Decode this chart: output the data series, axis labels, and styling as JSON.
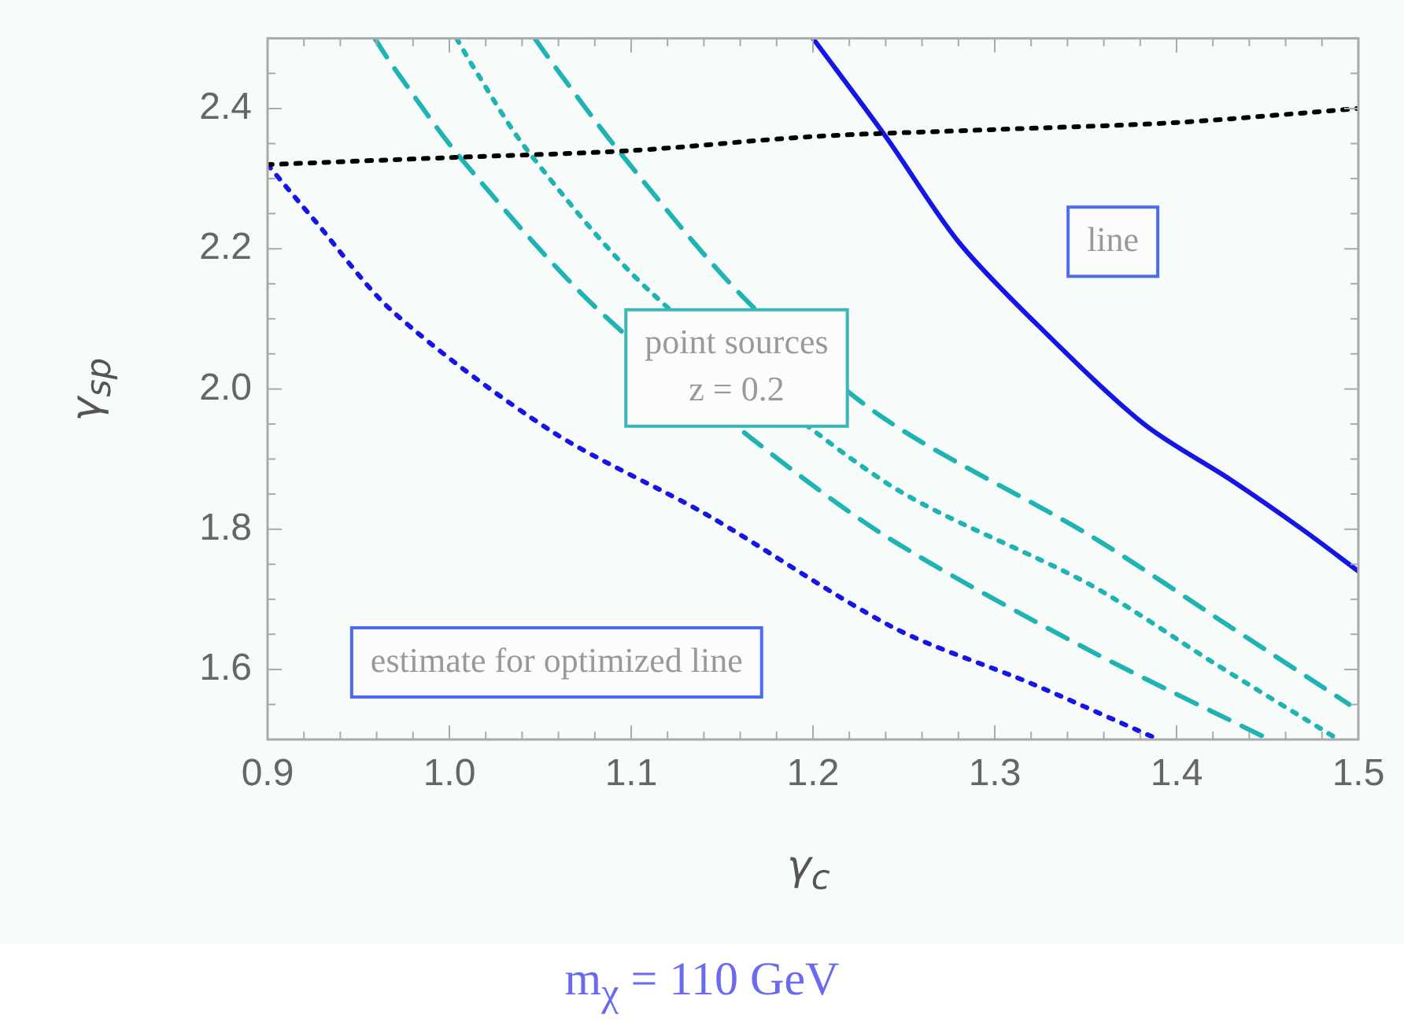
{
  "chart_data": {
    "type": "line",
    "xlabel": "γ$_{c}$",
    "ylabel": "γ$_{sp}$",
    "xlim": [
      0.9,
      1.5
    ],
    "xticks": [
      0.9,
      {
        "value": 0.92,
        "label": null
      },
      {
        "value": 0.94,
        "label": null
      },
      {
        "value": 0.96,
        "label": null
      },
      {
        "value": 0.98,
        "label": null
      },
      {
        "value": 1,
        "label": "1.0"
      },
      {
        "value": 1.02,
        "label": null
      },
      {
        "value": 1.04,
        "label": null
      },
      {
        "value": 1.06,
        "label": null
      },
      {
        "value": 1.08,
        "label": null
      },
      1.1,
      {
        "value": 1.12,
        "label": null
      },
      {
        "value": 1.14,
        "label": null
      },
      {
        "value": 1.16,
        "label": null
      },
      {
        "value": 1.18,
        "label": null
      },
      1.2,
      {
        "value": 1.22,
        "label": null
      },
      {
        "value": 1.24,
        "label": null
      },
      {
        "value": 1.26,
        "label": null
      },
      {
        "value": 1.28,
        "label": null
      },
      1.3,
      {
        "value": 1.32,
        "label": null
      },
      {
        "value": 1.34,
        "label": null
      },
      {
        "value": 1.36,
        "label": null
      },
      {
        "value": 1.38,
        "label": null
      },
      1.4,
      {
        "value": 1.42,
        "label": null
      },
      {
        "value": 1.44,
        "label": null
      },
      {
        "value": 1.46,
        "label": null
      },
      {
        "value": 1.48,
        "label": null
      },
      1.5
    ],
    "ylim": [
      1.5,
      2.5
    ],
    "yticks": [
      {
        "value": 1.5,
        "label": null
      },
      {
        "value": 1.55,
        "label": null
      },
      1.6,
      {
        "value": 1.65,
        "label": null
      },
      {
        "value": 1.7,
        "label": null
      },
      {
        "value": 1.75,
        "label": null
      },
      1.8,
      {
        "value": 1.85,
        "label": null
      },
      {
        "value": 1.9,
        "label": null
      },
      {
        "value": 1.95,
        "label": null
      },
      {
        "value": 2,
        "label": "2.0"
      },
      {
        "value": 2.05,
        "label": null
      },
      {
        "value": 2.1,
        "label": null
      },
      {
        "value": 2.15,
        "label": null
      },
      2.2,
      {
        "value": 2.25,
        "label": null
      },
      {
        "value": 2.3,
        "label": null
      },
      {
        "value": 2.35,
        "label": null
      },
      2.4,
      {
        "value": 2.45,
        "label": null
      },
      {
        "value": 2.5,
        "label": null
      }
    ],
    "grid": false,
    "legend": false,
    "marker": "none",
    "series": [
      {
        "color": "#000000",
        "line_style": "dotted",
        "x": [
          0.9,
          1.0,
          1.1,
          1.2,
          1.3,
          1.4,
          1.5
        ],
        "values": [
          2.32,
          2.33,
          2.34,
          2.36,
          2.37,
          2.38,
          2.4
        ]
      },
      {
        "color": "#1515e6",
        "line_style": "solid",
        "x": [
          1.2,
          1.24,
          1.28,
          1.324,
          1.382,
          1.43,
          1.469,
          1.5
        ],
        "values": [
          2.5,
          2.36,
          2.21,
          2.09,
          1.95,
          1.87,
          1.8,
          1.74
        ]
      },
      {
        "color": "#1515e6",
        "line_style": "dotted",
        "x": [
          0.9,
          0.926,
          0.969,
          1.056,
          1.142,
          1.244,
          1.32,
          1.39
        ],
        "values": [
          2.32,
          2.24,
          2.11,
          1.94,
          1.82,
          1.66,
          1.58,
          1.5
        ]
      },
      {
        "color": "#1fb3b3",
        "line_style": "dashed",
        "x": [
          0.959,
          0.969,
          1.006,
          1.079,
          1.166,
          1.24,
          1.35,
          1.451
        ],
        "values": [
          2.5,
          2.46,
          2.33,
          2.12,
          1.93,
          1.79,
          1.63,
          1.5
        ]
      },
      {
        "color": "#1fb3b3",
        "line_style": "dotted",
        "x": [
          1.004,
          1.013,
          1.043,
          1.11,
          1.238,
          1.353,
          1.42,
          1.489
        ],
        "values": [
          2.5,
          2.46,
          2.34,
          2.14,
          1.87,
          1.72,
          1.61,
          1.5
        ]
      },
      {
        "color": "#1fb3b3",
        "line_style": "dashed",
        "x": [
          1.047,
          1.058,
          1.093,
          1.162,
          1.238,
          1.353,
          1.43,
          1.495
        ],
        "values": [
          2.5,
          2.46,
          2.34,
          2.13,
          1.96,
          1.79,
          1.66,
          1.55
        ]
      }
    ],
    "annotations": [
      {
        "text": "point sources\nz = 0.2",
        "x": 1.158,
        "y": 2.03
      },
      "line",
      "estimate for optimized line",
      "m$_{χ}$ = 110 GeV"
    ]
  }
}
